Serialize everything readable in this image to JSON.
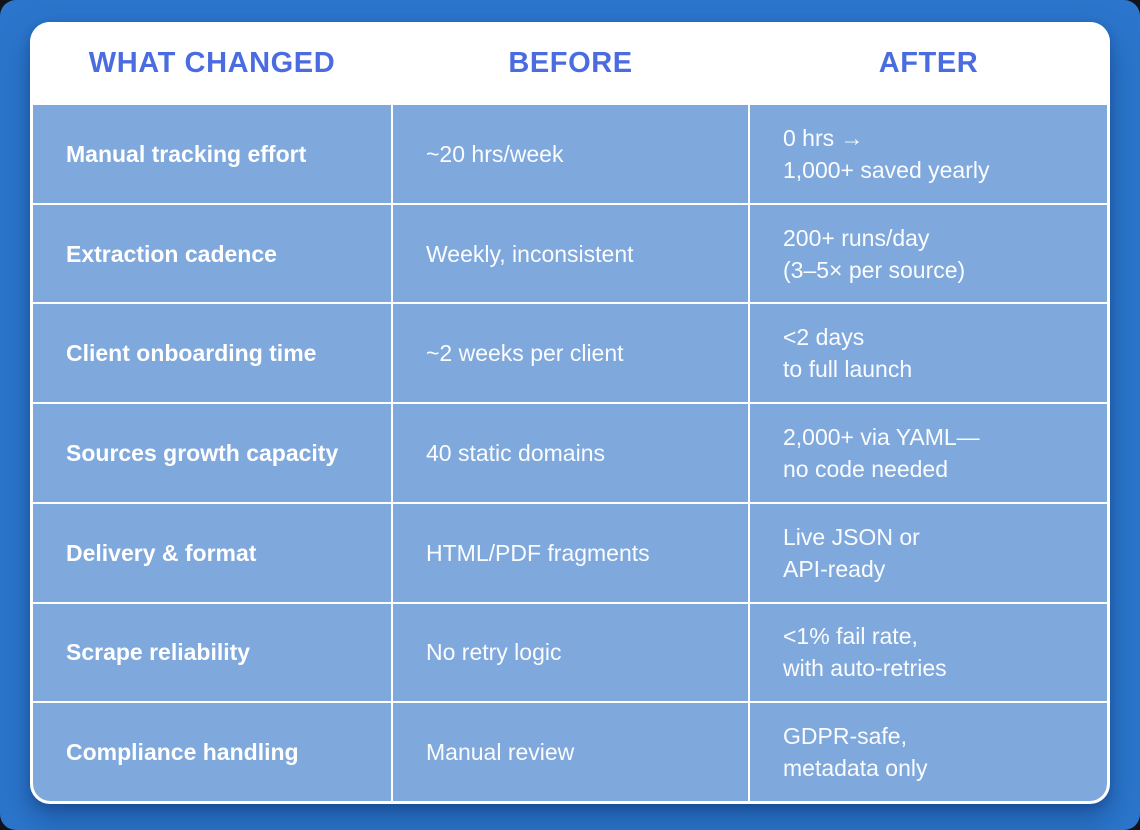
{
  "colors": {
    "page_background": "#2b76cc",
    "card_background": "#ffffff",
    "cell_background": "#7fa8dd",
    "header_text": "#4a6ce0",
    "body_text": "#ffffff"
  },
  "chart_data": {
    "type": "table",
    "columns": [
      "WHAT CHANGED",
      "BEFORE",
      "AFTER"
    ],
    "rows": [
      {
        "what_changed": "Manual tracking effort",
        "before": "~20 hrs/week",
        "after_line1": "0 hrs →",
        "after_line2": "1,000+ saved yearly"
      },
      {
        "what_changed": "Extraction cadence",
        "before": "Weekly, inconsistent",
        "after_line1": "200+ runs/day",
        "after_line2": "(3–5× per source)"
      },
      {
        "what_changed": "Client onboarding time",
        "before": "~2 weeks per client",
        "after_line1": "<2 days",
        "after_line2": "to full launch"
      },
      {
        "what_changed": "Sources growth capacity",
        "before": "40 static domains",
        "after_line1": "2,000+ via YAML—",
        "after_line2": "no code needed"
      },
      {
        "what_changed": "Delivery & format",
        "before": "HTML/PDF fragments",
        "after_line1": "Live JSON or",
        "after_line2": "API-ready"
      },
      {
        "what_changed": "Scrape reliability",
        "before": "No retry logic",
        "after_line1": "<1% fail rate,",
        "after_line2": "with auto-retries"
      },
      {
        "what_changed": "Compliance handling",
        "before": "Manual review",
        "after_line1": "GDPR-safe,",
        "after_line2": "metadata only"
      }
    ]
  }
}
